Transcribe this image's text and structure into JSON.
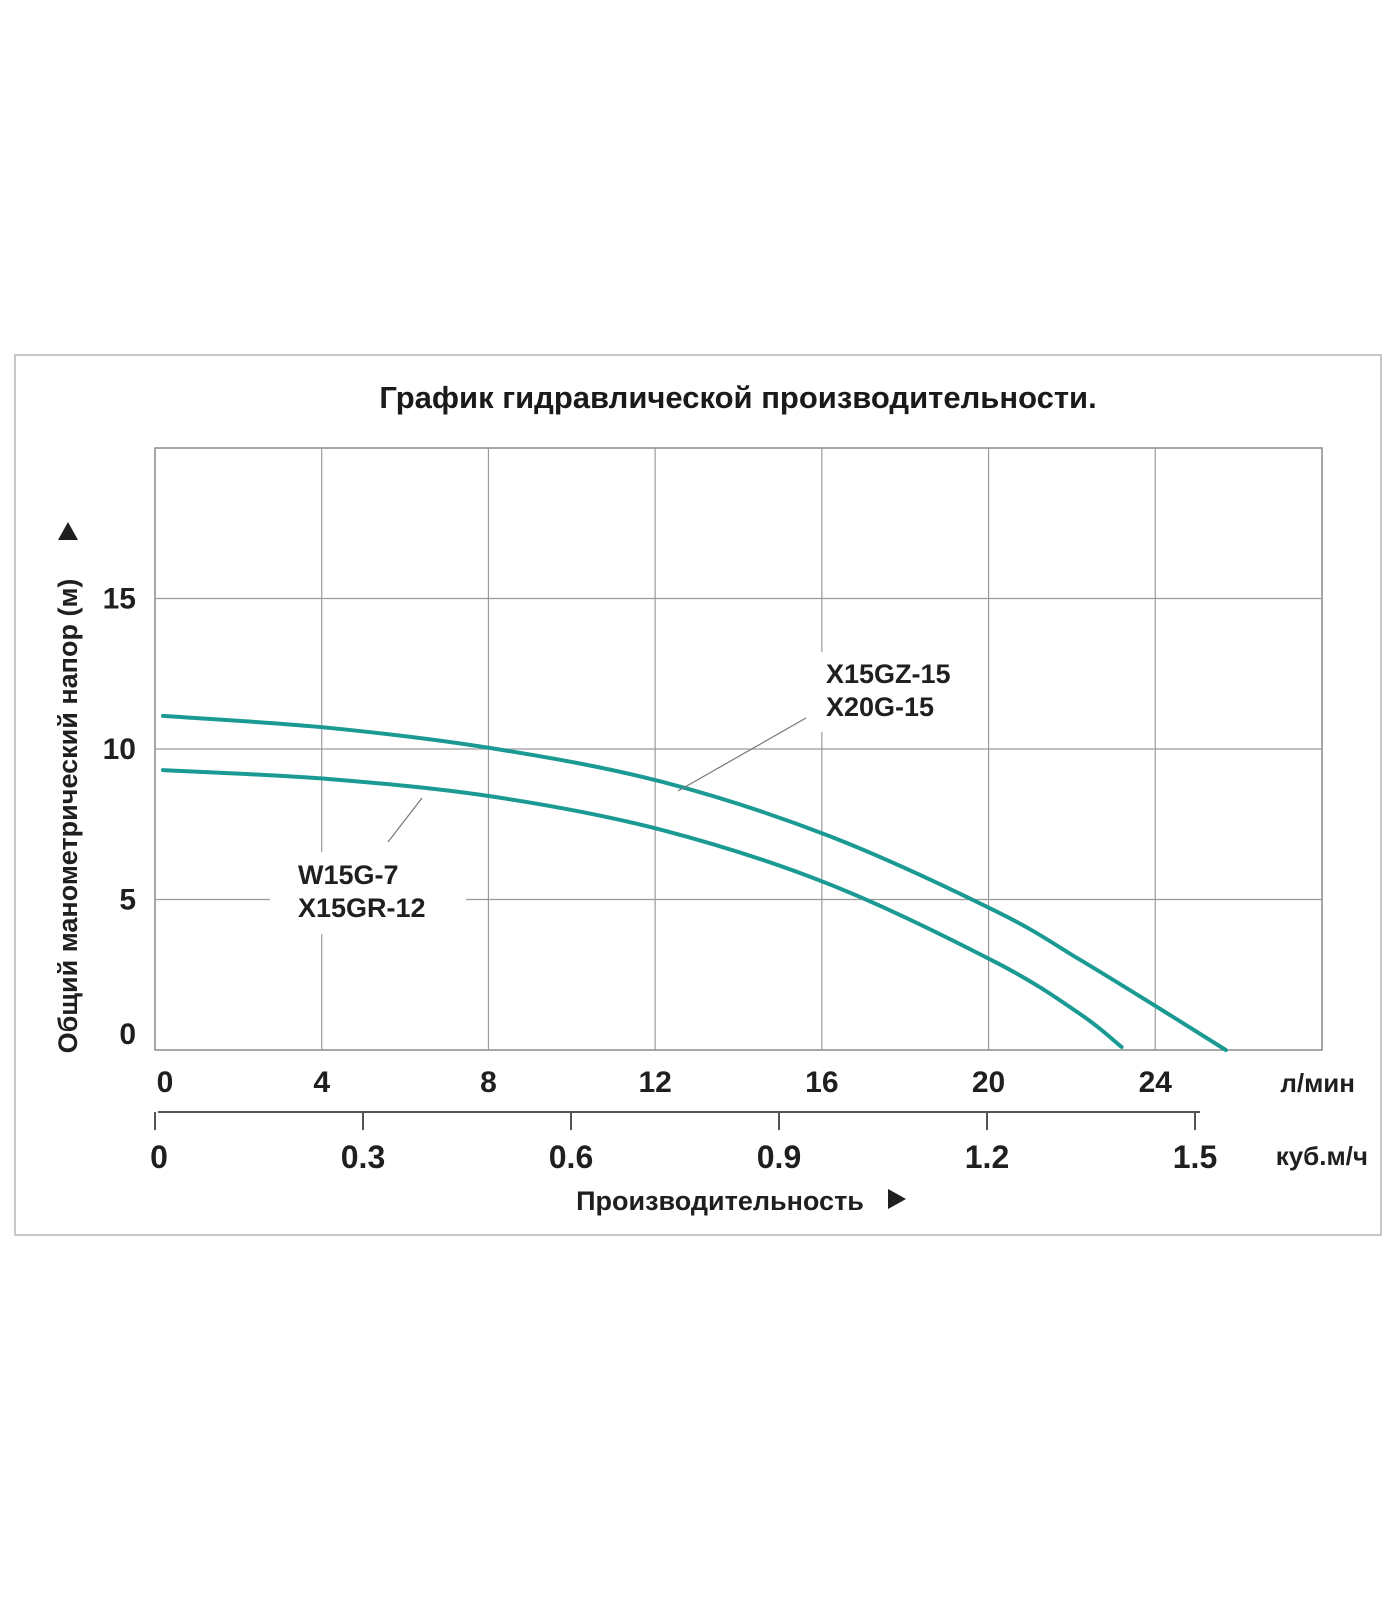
{
  "chart_data": {
    "type": "line",
    "title": "График гидравлической производительности.",
    "ylabel": "Общий манометрический напор (м)",
    "xlabel": "Производительность",
    "ylim": [
      0,
      20
    ],
    "xlim": [
      0,
      28
    ],
    "y_ticks": [
      0,
      5,
      10,
      15
    ],
    "x_ticks": [
      0,
      4,
      8,
      12,
      16,
      20,
      24
    ],
    "x_unit": "л/мин",
    "x2_ticks": [
      0,
      0.3,
      0.6,
      0.9,
      1.2,
      1.5
    ],
    "x2_tick_labels": [
      "0",
      "0.3",
      "0.6",
      "0.9",
      "1.2",
      "1.5"
    ],
    "x2_unit": "куб.м/ч",
    "grid": true,
    "line_color": "#1a9a93",
    "series": [
      {
        "name": "X15GZ-15\nX20G-15",
        "label_lines": [
          "X15GZ-15",
          "X20G-15"
        ],
        "x": [
          0,
          4,
          8,
          12,
          16,
          20,
          22,
          24,
          25.5
        ],
        "y": [
          11.1,
          10.7,
          10.0,
          8.9,
          7.1,
          4.6,
          3.0,
          1.3,
          0
        ]
      },
      {
        "name": "W15G-7\nX15GR-12",
        "label_lines": [
          "W15G-7",
          "X15GR-12"
        ],
        "x": [
          0,
          4,
          8,
          12,
          16,
          20,
          22,
          23
        ],
        "y": [
          9.3,
          9.0,
          8.4,
          7.3,
          5.5,
          2.9,
          1.2,
          0.1
        ]
      }
    ]
  }
}
